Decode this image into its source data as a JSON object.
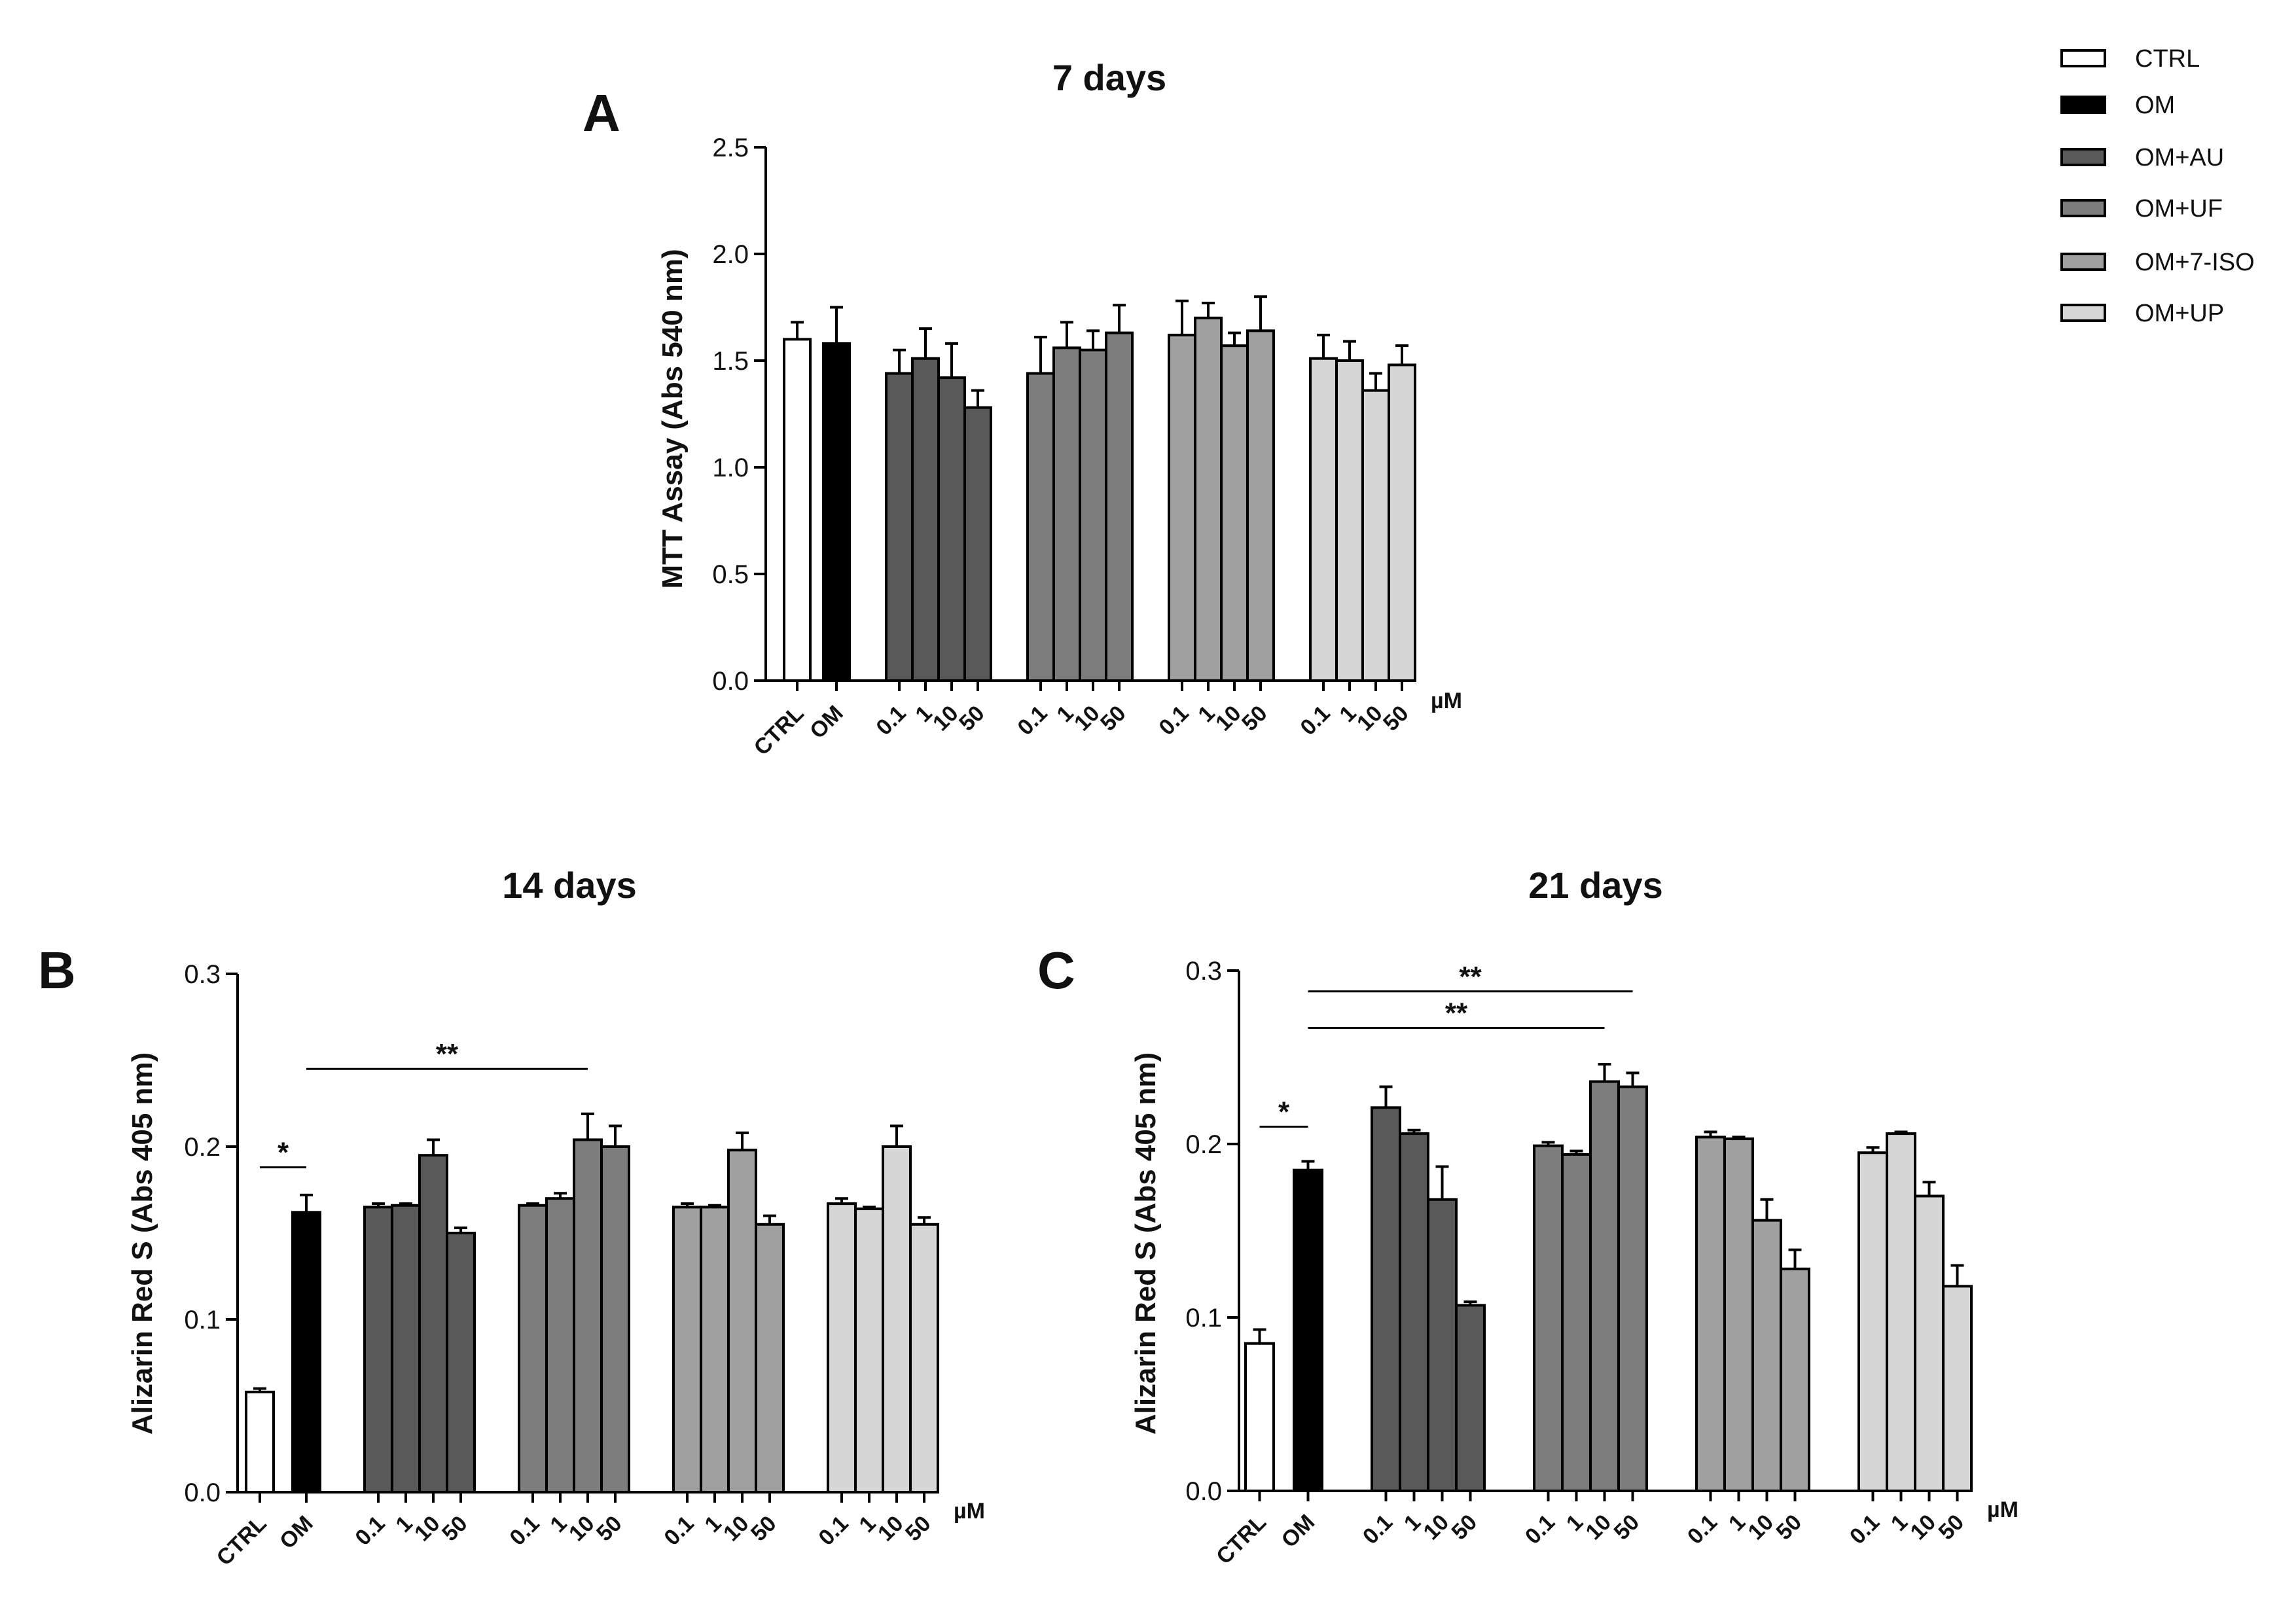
{
  "legend": [
    {
      "key": "CTRL",
      "label": "CTRL"
    },
    {
      "key": "OM",
      "label": "OM"
    },
    {
      "key": "OM_AU",
      "label": "OM+AU"
    },
    {
      "key": "OM_UF",
      "label": "OM+UF"
    },
    {
      "key": "OM_7ISO",
      "label": "OM+7-ISO"
    },
    {
      "key": "OM_UP",
      "label": "OM+UP"
    }
  ],
  "colors": {
    "CTRL": "#ffffff",
    "OM": "#000000",
    "OM_AU": "#595959",
    "OM_UF": "#7d7d7d",
    "OM_7ISO": "#a0a0a0",
    "OM_UP": "#d6d6d6",
    "outline": "#000000"
  },
  "chart_data": [
    {
      "panel": "A",
      "type": "bar",
      "title": "7 days",
      "ylabel": "MTT Assay (Abs 540 nm)",
      "ylim": [
        0,
        2.5
      ],
      "yticks": [
        "0.0",
        "0.5",
        "1.0",
        "1.5",
        "2.0",
        "2.5"
      ],
      "unit_label": "µM",
      "groups": [
        {
          "series": "CTRL",
          "labels": [
            "CTRL"
          ],
          "values": [
            1.6
          ],
          "errors": [
            0.08
          ]
        },
        {
          "series": "OM",
          "labels": [
            "OM"
          ],
          "values": [
            1.58
          ],
          "errors": [
            0.17
          ]
        },
        {
          "series": "OM_AU",
          "labels": [
            "0.1",
            "1",
            "10",
            "50"
          ],
          "values": [
            1.44,
            1.51,
            1.42,
            1.28
          ],
          "errors": [
            0.11,
            0.14,
            0.16,
            0.08
          ]
        },
        {
          "series": "OM_UF",
          "labels": [
            "0.1",
            "1",
            "10",
            "50"
          ],
          "values": [
            1.44,
            1.56,
            1.55,
            1.63
          ],
          "errors": [
            0.17,
            0.12,
            0.09,
            0.13
          ]
        },
        {
          "series": "OM_7ISO",
          "labels": [
            "0.1",
            "1",
            "10",
            "50"
          ],
          "values": [
            1.62,
            1.7,
            1.57,
            1.64
          ],
          "errors": [
            0.16,
            0.07,
            0.06,
            0.16
          ]
        },
        {
          "series": "OM_UP",
          "labels": [
            "0.1",
            "1",
            "10",
            "50"
          ],
          "values": [
            1.51,
            1.5,
            1.36,
            1.48
          ],
          "errors": [
            0.11,
            0.09,
            0.08,
            0.09
          ]
        }
      ],
      "significance": []
    },
    {
      "panel": "B",
      "type": "bar",
      "title": "14 days",
      "ylabel": "Alizarin Red S (Abs 405 nm)",
      "ylim": [
        0,
        0.3
      ],
      "yticks": [
        "0.0",
        "0.1",
        "0.2",
        "0.3"
      ],
      "unit_label": "µM",
      "groups": [
        {
          "series": "CTRL",
          "labels": [
            "CTRL"
          ],
          "values": [
            0.058
          ],
          "errors": [
            0.002
          ]
        },
        {
          "series": "OM",
          "labels": [
            "OM"
          ],
          "values": [
            0.162
          ],
          "errors": [
            0.01
          ]
        },
        {
          "series": "OM_AU",
          "labels": [
            "0.1",
            "1",
            "10",
            "50"
          ],
          "values": [
            0.165,
            0.166,
            0.195,
            0.15
          ],
          "errors": [
            0.002,
            0.001,
            0.009,
            0.003
          ]
        },
        {
          "series": "OM_UF",
          "labels": [
            "0.1",
            "1",
            "10",
            "50"
          ],
          "values": [
            0.166,
            0.17,
            0.204,
            0.2
          ],
          "errors": [
            0.001,
            0.003,
            0.015,
            0.012
          ]
        },
        {
          "series": "OM_7ISO",
          "labels": [
            "0.1",
            "1",
            "10",
            "50"
          ],
          "values": [
            0.165,
            0.165,
            0.198,
            0.155
          ],
          "errors": [
            0.002,
            0.001,
            0.01,
            0.005
          ]
        },
        {
          "series": "OM_UP",
          "labels": [
            "0.1",
            "1",
            "10",
            "50"
          ],
          "values": [
            0.167,
            0.164,
            0.2,
            0.155
          ],
          "errors": [
            0.003,
            0.001,
            0.012,
            0.004
          ]
        }
      ],
      "significance": [
        {
          "label": "*",
          "from": "CTRL",
          "to": "OM",
          "y": 0.188
        },
        {
          "label": "**",
          "from": "OM",
          "to": "OM_UF:10",
          "y": 0.245
        }
      ]
    },
    {
      "panel": "C",
      "type": "bar",
      "title": "21 days",
      "ylabel": "Alizarin Red S (Abs 405 nm)",
      "ylim": [
        0,
        0.3
      ],
      "yticks": [
        "0.0",
        "0.1",
        "0.2",
        "0.3"
      ],
      "unit_label": "µM",
      "groups": [
        {
          "series": "CTRL",
          "labels": [
            "CTRL"
          ],
          "values": [
            0.085
          ],
          "errors": [
            0.008
          ]
        },
        {
          "series": "OM",
          "labels": [
            "OM"
          ],
          "values": [
            0.185
          ],
          "errors": [
            0.005
          ]
        },
        {
          "series": "OM_AU",
          "labels": [
            "0.1",
            "1",
            "10",
            "50"
          ],
          "values": [
            0.221,
            0.206,
            0.168,
            0.107
          ],
          "errors": [
            0.012,
            0.002,
            0.019,
            0.002
          ]
        },
        {
          "series": "OM_UF",
          "labels": [
            "0.1",
            "1",
            "10",
            "50"
          ],
          "values": [
            0.199,
            0.194,
            0.236,
            0.233
          ],
          "errors": [
            0.002,
            0.002,
            0.01,
            0.008
          ]
        },
        {
          "series": "OM_7ISO",
          "labels": [
            "0.1",
            "1",
            "10",
            "50"
          ],
          "values": [
            0.204,
            0.203,
            0.156,
            0.128
          ],
          "errors": [
            0.003,
            0.001,
            0.012,
            0.011
          ]
        },
        {
          "series": "OM_UP",
          "labels": [
            "0.1",
            "1",
            "10",
            "50"
          ],
          "values": [
            0.195,
            0.206,
            0.17,
            0.118
          ],
          "errors": [
            0.003,
            0.001,
            0.008,
            0.012
          ]
        }
      ],
      "significance": [
        {
          "label": "*",
          "from": "CTRL",
          "to": "OM",
          "y": 0.21
        },
        {
          "label": "**",
          "from": "OM",
          "to": "OM_UF:10",
          "y": 0.267
        },
        {
          "label": "**",
          "from": "OM",
          "to": "OM_UF:50",
          "y": 0.288
        }
      ]
    }
  ]
}
